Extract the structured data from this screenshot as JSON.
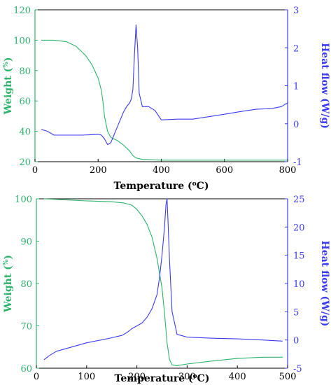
{
  "colors": {
    "weight": "#2db36b",
    "heat": "#3b3bf0",
    "axis": "#000000"
  },
  "chart_data": [
    {
      "type": "line",
      "xlabel": "Temperature (",
      "xlabel_sup": "o",
      "xlabel_end": "C)",
      "ylabel_left": "Weight (",
      "ylabel_left_sup": "%",
      "ylabel_left_end": ")",
      "ylabel_right": "Heat flow (W/g)",
      "xlim": [
        0,
        800
      ],
      "ylim_left": [
        20,
        120
      ],
      "ylim_right": [
        -1,
        3
      ],
      "x_ticks": [
        "0",
        "200",
        "400",
        "600",
        "800"
      ],
      "yleft_ticks": [
        "20",
        "40",
        "60",
        "80",
        "100",
        "120"
      ],
      "yright_ticks": [
        "-1",
        "0",
        "1",
        "2",
        "3"
      ],
      "series": [
        {
          "axis": "left",
          "x": [
            20,
            60,
            100,
            130,
            160,
            180,
            200,
            210,
            215,
            220,
            225,
            230,
            240,
            250,
            260,
            280,
            300,
            310,
            320,
            340,
            400,
            500,
            600,
            700,
            800
          ],
          "y": [
            100,
            100,
            99,
            96,
            90,
            84,
            75,
            67,
            60,
            50,
            45,
            40,
            36,
            35,
            34,
            31,
            27,
            24,
            22.5,
            21.5,
            21,
            21,
            21,
            21,
            21
          ]
        },
        {
          "axis": "right",
          "x": [
            20,
            40,
            60,
            100,
            150,
            200,
            210,
            220,
            230,
            240,
            250,
            260,
            270,
            280,
            290,
            300,
            305,
            310,
            315,
            320,
            325,
            330,
            340,
            360,
            380,
            400,
            450,
            500,
            600,
            650,
            700,
            750,
            780,
            800
          ],
          "y": [
            -0.15,
            -0.2,
            -0.3,
            -0.3,
            -0.3,
            -0.28,
            -0.3,
            -0.4,
            -0.55,
            -0.5,
            -0.3,
            -0.1,
            0.1,
            0.3,
            0.45,
            0.55,
            0.65,
            0.9,
            1.8,
            2.6,
            2.0,
            0.8,
            0.45,
            0.45,
            0.35,
            0.1,
            0.12,
            0.12,
            0.25,
            0.32,
            0.38,
            0.4,
            0.45,
            0.55
          ]
        }
      ]
    },
    {
      "type": "line",
      "xlabel": "Temperature (",
      "xlabel_sup": "o",
      "xlabel_end": "C)",
      "ylabel_left": "Weight (",
      "ylabel_left_sup": "%",
      "ylabel_left_end": ")",
      "ylabel_right": "Heat flow (W/g)",
      "xlim": [
        0,
        500
      ],
      "ylim_left": [
        60,
        100
      ],
      "ylim_right": [
        -5,
        25
      ],
      "x_ticks": [
        "0",
        "100",
        "200",
        "300",
        "400",
        "500"
      ],
      "yleft_ticks": [
        "60",
        "70",
        "80",
        "90",
        "100"
      ],
      "yright_ticks": [
        "-5",
        "0",
        "5",
        "10",
        "15",
        "20",
        "25"
      ],
      "series": [
        {
          "axis": "left",
          "x": [
            15,
            50,
            100,
            150,
            175,
            190,
            200,
            210,
            220,
            230,
            240,
            250,
            255,
            260,
            265,
            270,
            280,
            300,
            350,
            400,
            450,
            490
          ],
          "y": [
            100,
            99.8,
            99.5,
            99.3,
            99,
            98.5,
            97.5,
            96,
            94,
            91,
            86,
            79,
            73,
            66,
            62,
            60.8,
            60.6,
            61,
            61.7,
            62.3,
            62.6,
            62.6
          ]
        },
        {
          "axis": "right",
          "x": [
            15,
            25,
            40,
            60,
            100,
            140,
            170,
            180,
            190,
            200,
            210,
            220,
            230,
            240,
            245,
            250,
            255,
            258,
            260,
            262,
            265,
            270,
            280,
            300,
            350,
            400,
            450,
            490
          ],
          "y": [
            -3.5,
            -2.8,
            -2,
            -1.5,
            -0.5,
            0.2,
            0.8,
            1.3,
            2,
            2.5,
            3,
            4,
            5.5,
            8,
            11,
            15,
            20,
            24,
            25,
            21,
            14,
            5,
            1,
            0.5,
            0.3,
            0.2,
            0,
            -0.2
          ]
        }
      ]
    }
  ]
}
